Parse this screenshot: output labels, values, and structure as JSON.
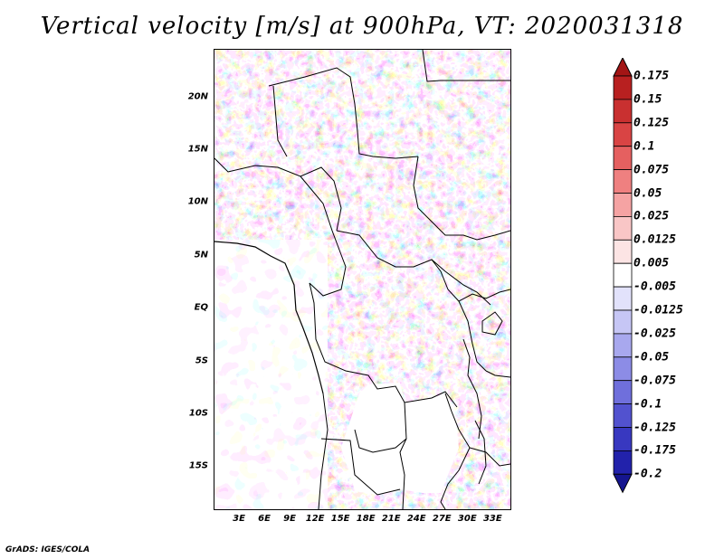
{
  "title": "Vertical velocity [m/s] at 900hPa, VT: 2020031318",
  "map": {
    "lat_ticks": [
      "20N",
      "15N",
      "10N",
      "5N",
      "EQ",
      "5S",
      "10S",
      "15S"
    ],
    "lon_ticks": [
      "3E",
      "6E",
      "9E",
      "12E",
      "15E",
      "18E",
      "21E",
      "24E",
      "27E",
      "30E",
      "33E"
    ],
    "lat_range": [
      -19,
      24.5
    ],
    "lon_range": [
      0,
      35
    ]
  },
  "colorbar": {
    "labels": [
      "0.175",
      "0.15",
      "0.125",
      "0.1",
      "0.075",
      "0.05",
      "0.025",
      "0.0125",
      "0.005",
      "-0.005",
      "-0.0125",
      "-0.025",
      "-0.05",
      "-0.075",
      "-0.1",
      "-0.125",
      "-0.175",
      "-0.2"
    ],
    "colors": [
      "#a31515",
      "#b82020",
      "#c93030",
      "#d94444",
      "#e56060",
      "#ef8080",
      "#f5a3a3",
      "#f9c6c6",
      "#fce4e4",
      "#ffffff",
      "#e2e2fb",
      "#c6c6f5",
      "#a8a8ee",
      "#8c8ce6",
      "#6f6fdc",
      "#5252cf",
      "#3838c0",
      "#2222ab",
      "#15158f"
    ]
  },
  "credit": "GrADS: IGES/COLA"
}
